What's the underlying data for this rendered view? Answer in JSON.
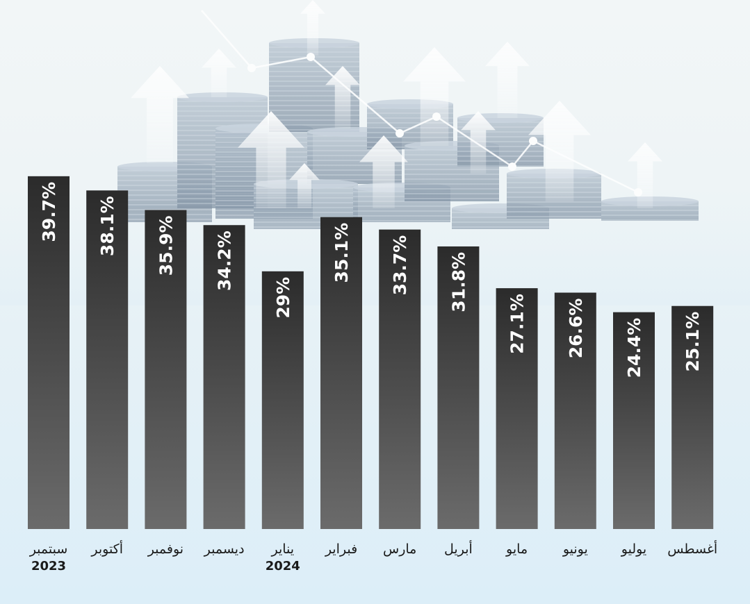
{
  "chart_data": {
    "type": "bar",
    "categories": [
      "سبتمبر",
      "أكتوبر",
      "نوفمبر",
      "ديسمبر",
      "يناير",
      "فبراير",
      "مارس",
      "أبريل",
      "مايو",
      "يونيو",
      "يوليو",
      "أغسطس"
    ],
    "year_labels": [
      {
        "category_index": 0,
        "text": "2023"
      },
      {
        "category_index": 4,
        "text": "2024"
      }
    ],
    "values": [
      39.7,
      38.1,
      35.9,
      34.2,
      29,
      35.1,
      33.7,
      31.8,
      27.1,
      26.6,
      24.4,
      25.1
    ],
    "value_labels": [
      "39.7%",
      "38.1%",
      "35.9%",
      "34.2%",
      "29%",
      "35.1%",
      "33.7%",
      "31.8%",
      "27.1%",
      "26.6%",
      "24.4%",
      "25.1%"
    ],
    "ylim": [
      0,
      40
    ],
    "grid": false,
    "title": "",
    "xlabel": "",
    "ylabel": ""
  },
  "colors": {
    "bar_top": "#2b2b2b",
    "bar_bottom": "#6b6b6b",
    "value_text": "#ffffff",
    "label_text": "#1a1a1a",
    "coin": "#8a9cae",
    "arrow": "#ffffff"
  },
  "background": {
    "description_icon": "coin-stacks-with-upward-arrows"
  }
}
